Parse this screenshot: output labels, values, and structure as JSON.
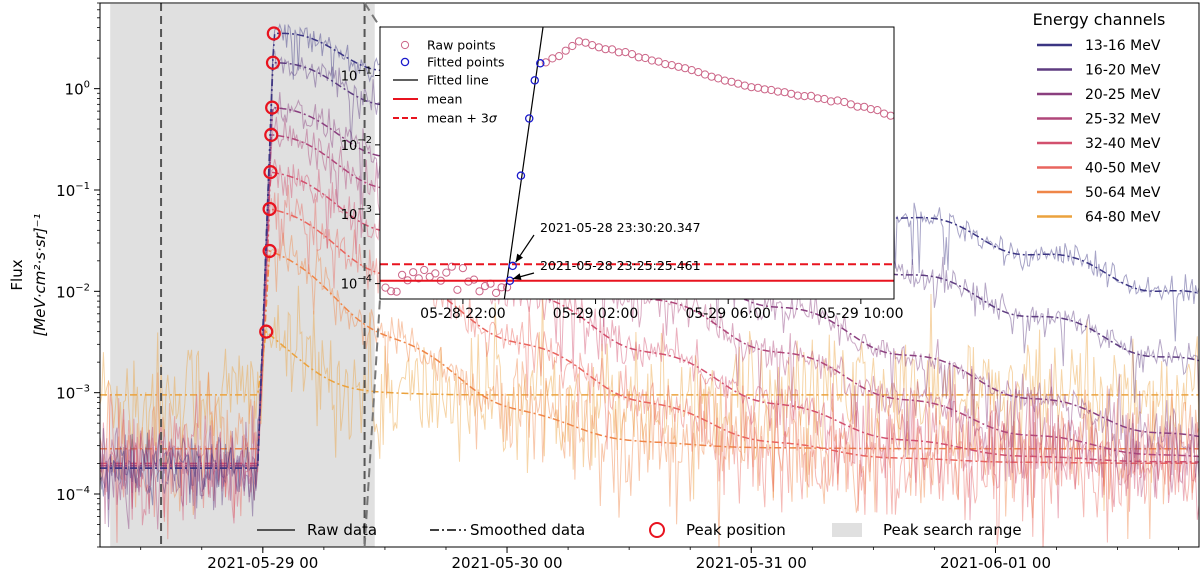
{
  "chart_data": [
    {
      "type": "line",
      "title": "",
      "xlabel": "",
      "ylabel": "Flux",
      "ylabel_unit": "[MeV·cm²·s·sr]⁻¹",
      "yscale": "log",
      "ylim": [
        3e-05,
        7
      ],
      "xlim": [
        "2021-05-28 08:00",
        "2021-06-01 20:00"
      ],
      "x_ticks": [
        "2021-05-29 00",
        "2021-05-30 00",
        "2021-05-31 00",
        "2021-06-01 00"
      ],
      "x_tick_values": [
        "2021-05-29 00:00",
        "2021-05-30 00:00",
        "2021-05-31 00:00",
        "2021-06-01 00:00"
      ],
      "y_ticks": [
        "10⁻⁴",
        "10⁻³",
        "10⁻²",
        "10⁻¹",
        "10⁰"
      ],
      "y_tick_values": [
        0.0001,
        0.001,
        0.01,
        0.1,
        1
      ],
      "grid": false,
      "legend_title": "Energy channels",
      "legend_position": "top-right",
      "series": [
        {
          "name": "13-16 MeV",
          "color": "#3b3583",
          "peak_time": "2021-05-29 01:05",
          "peak": 3.5,
          "baseline": 0.00018,
          "decay_hours": 15
        },
        {
          "name": "16-20 MeV",
          "color": "#5e3c80",
          "peak_time": "2021-05-29 01:00",
          "peak": 1.8,
          "baseline": 0.00018,
          "decay_hours": 13
        },
        {
          "name": "20-25 MeV",
          "color": "#8a3f7f",
          "peak_time": "2021-05-29 00:55",
          "peak": 0.65,
          "baseline": 0.00018,
          "decay_hours": 11
        },
        {
          "name": "25-32 MeV",
          "color": "#b0477a",
          "peak_time": "2021-05-29 00:50",
          "peak": 0.35,
          "baseline": 0.00019,
          "decay_hours": 10
        },
        {
          "name": "32-40 MeV",
          "color": "#d2506e",
          "peak_time": "2021-05-29 00:45",
          "peak": 0.15,
          "baseline": 0.0002,
          "decay_hours": 9
        },
        {
          "name": "40-50 MeV",
          "color": "#e9655e",
          "peak_time": "2021-05-29 00:40",
          "peak": 0.065,
          "baseline": 0.0002,
          "decay_hours": 8
        },
        {
          "name": "50-64 MeV",
          "color": "#ef8648",
          "peak_time": "2021-05-29 00:40",
          "peak": 0.025,
          "baseline": 0.00028,
          "decay_hours": 6
        },
        {
          "name": "64-80 MeV",
          "color": "#eba23d",
          "peak_time": "2021-05-29 00:20",
          "peak": 0.004,
          "baseline": 0.00095,
          "decay_hours": 3
        }
      ],
      "peak_search_range": [
        "2021-05-28 09:00",
        "2021-05-29 11:00"
      ],
      "zoom_range": [
        "2021-05-28 14:00",
        "2021-05-29 10:00"
      ],
      "bottom_legend": [
        "Raw data",
        "Smoothed data",
        "Peak position",
        "Peak search range"
      ]
    },
    {
      "type": "scatter",
      "title": "",
      "yscale": "log",
      "ylim": [
        6e-05,
        0.5
      ],
      "xlim": [
        "2021-05-28 19:30",
        "2021-05-29 11:00"
      ],
      "x_ticks": [
        "05-28 22:00",
        "05-29 02:00",
        "05-29 06:00",
        "05-29 10:00"
      ],
      "x_tick_values": [
        "2021-05-28 22:00",
        "2021-05-29 02:00",
        "2021-05-29 06:00",
        "2021-05-29 10:00"
      ],
      "y_ticks": [
        "10⁻⁴",
        "10⁻³",
        "10⁻²",
        "10⁻¹"
      ],
      "y_tick_values": [
        0.0001,
        0.001,
        0.01,
        0.1
      ],
      "legend_position": "top-left",
      "legend": [
        "Raw points",
        "Fitted points",
        "Fitted line",
        "mean",
        "mean + 3σ"
      ],
      "mean": 0.00011,
      "mean_plus_3sigma": 0.00019,
      "fitted_points": [
        [
          "2021-05-28 23:25",
          0.00011
        ],
        [
          "2021-05-28 23:30",
          0.00018
        ],
        [
          "2021-05-28 23:45",
          0.0036
        ],
        [
          "2021-05-29 00:00",
          0.024
        ],
        [
          "2021-05-29 00:10",
          0.085
        ],
        [
          "2021-05-29 00:20",
          0.15
        ]
      ],
      "fitted_line": [
        [
          "2021-05-28 23:15",
          6e-05
        ],
        [
          "2021-05-29 00:25",
          0.5
        ]
      ],
      "annotations": [
        {
          "text": "2021-05-28 23:30:20.347",
          "x": "2021-05-28 23:30",
          "y": 0.00019
        },
        {
          "text": "2021-05-28 23:25:25.461",
          "x": "2021-05-28 23:25",
          "y": 0.00011
        }
      ]
    }
  ]
}
